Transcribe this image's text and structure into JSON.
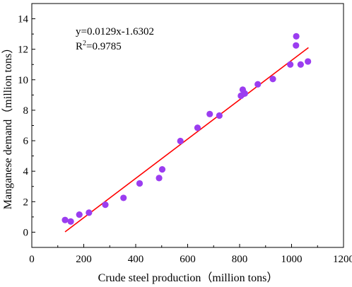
{
  "chart_data": {
    "type": "scatter",
    "xlabel": "Crude steel production（million tons）",
    "ylabel": "Manganese demand（million tons）",
    "xlim": [
      0,
      1200
    ],
    "ylim": [
      -1,
      15
    ],
    "xticks": [
      0,
      200,
      400,
      600,
      800,
      1000,
      1200
    ],
    "yticks": [
      0,
      2,
      4,
      6,
      8,
      10,
      12,
      14
    ],
    "grid": false,
    "points": [
      {
        "x": 128,
        "y": 0.8
      },
      {
        "x": 150,
        "y": 0.7
      },
      {
        "x": 183,
        "y": 1.15
      },
      {
        "x": 220,
        "y": 1.28
      },
      {
        "x": 283,
        "y": 1.8
      },
      {
        "x": 353,
        "y": 2.25
      },
      {
        "x": 415,
        "y": 3.2
      },
      {
        "x": 490,
        "y": 3.55
      },
      {
        "x": 502,
        "y": 4.12
      },
      {
        "x": 572,
        "y": 5.98
      },
      {
        "x": 638,
        "y": 6.85
      },
      {
        "x": 685,
        "y": 7.75
      },
      {
        "x": 722,
        "y": 7.65
      },
      {
        "x": 805,
        "y": 8.95
      },
      {
        "x": 812,
        "y": 9.35
      },
      {
        "x": 820,
        "y": 9.1
      },
      {
        "x": 870,
        "y": 9.7
      },
      {
        "x": 928,
        "y": 10.05
      },
      {
        "x": 995,
        "y": 11.0
      },
      {
        "x": 1017,
        "y": 12.25
      },
      {
        "x": 1018,
        "y": 12.85
      },
      {
        "x": 1035,
        "y": 11.0
      },
      {
        "x": 1063,
        "y": 11.2
      }
    ],
    "fit_line": {
      "x_start": 128,
      "x_end": 1065,
      "slope": 0.0129,
      "intercept": -1.6302
    },
    "annotations": {
      "equation": "y=0.0129x-1.6302",
      "r2_prefix": "R",
      "r2_sup": "2",
      "r2_value": "=0.9785"
    },
    "colors": {
      "points": "#9b3df0",
      "fit_line": "#ff0000",
      "axes": "#000000"
    }
  }
}
